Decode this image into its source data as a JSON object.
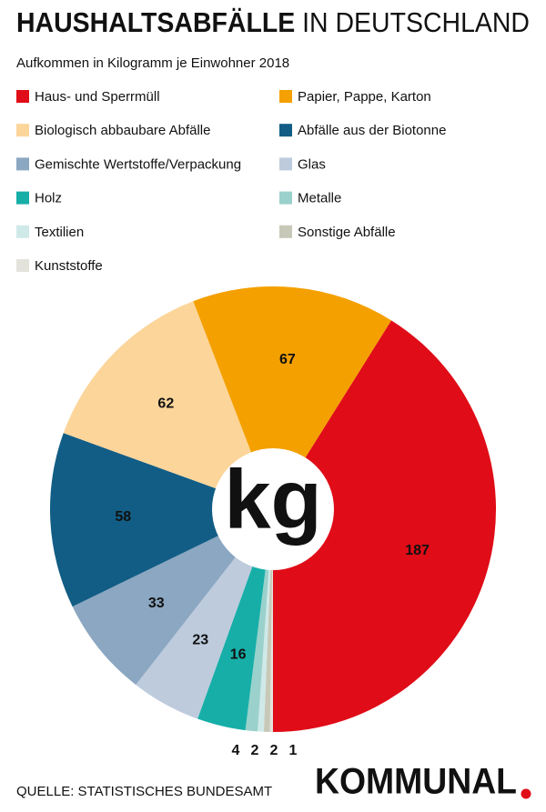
{
  "chart_data": {
    "type": "pie",
    "title": [
      "HAUSHALTSABFÄLLE",
      "IN DEUTSCHLAND"
    ],
    "subtitle": "Aufkommen in Kilogramm je Einwohner 2018",
    "categories": [
      "Haus- und Sperrmüll",
      "Papier, Pappe, Karton",
      "Biologisch abbaubare Abfälle",
      "Abfälle aus der Biotonne",
      "Gemischte Wertstoffe/Verpackung",
      "Glas",
      "Holz",
      "Metalle",
      "Textilien",
      "Sonstige Abfälle",
      "Kunststoffe"
    ],
    "values": [
      187,
      67,
      62,
      58,
      33,
      23,
      16,
      4,
      2,
      2,
      1
    ],
    "colors": [
      "#e00c17",
      "#f4a000",
      "#fcd59a",
      "#125d85",
      "#8ba7c1",
      "#bdcbdd",
      "#17aea8",
      "#9bd1cc",
      "#cfe9e8",
      "#c8c8b8",
      "#e3e3dc"
    ],
    "center_label": "kg"
  },
  "footer": {
    "source": "QUELLE: STATISTISCHES BUNDESAMT",
    "brand": "KOMMUNAL"
  }
}
